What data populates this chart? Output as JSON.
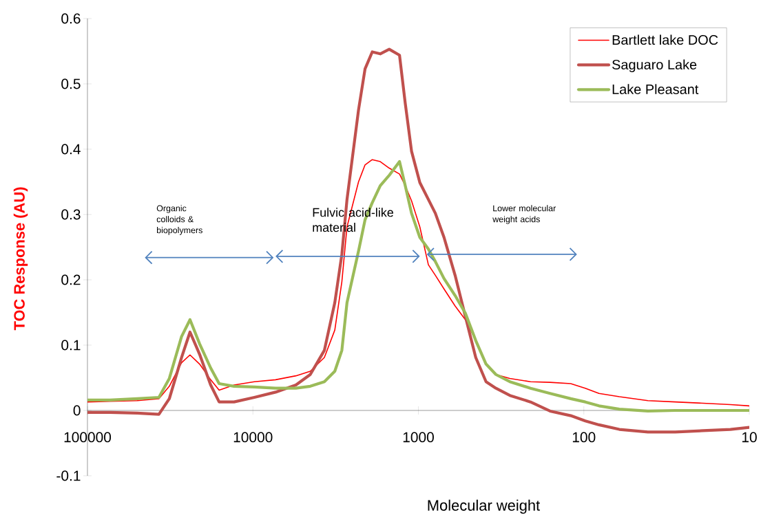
{
  "chart_data": {
    "type": "line",
    "xlabel": "Molecular weight",
    "ylabel": "TOC Response (AU)",
    "log": "x",
    "x": [
      100000,
      73000,
      50000,
      37000,
      32000,
      27000,
      24000,
      21000,
      18000,
      16000,
      13000,
      9800,
      7300,
      5500,
      4500,
      3700,
      3200,
      2900,
      2700,
      2300,
      2100,
      1900,
      1700,
      1500,
      1300,
      1200,
      1100,
      980,
      870,
      790,
      700,
      600,
      520,
      450,
      390,
      340,
      280,
      210,
      160,
      120,
      98,
      81,
      61,
      41,
      28,
      19,
      13,
      10
    ],
    "series": [
      {
        "name": "Bartlett lake DOC",
        "color": "#ff0000",
        "values": [
          0.013,
          0.014,
          0.015,
          0.018,
          0.037,
          0.073,
          0.085,
          0.071,
          0.047,
          0.031,
          0.039,
          0.044,
          0.047,
          0.053,
          0.06,
          0.081,
          0.123,
          0.197,
          0.281,
          0.35,
          0.376,
          0.384,
          0.381,
          0.371,
          0.362,
          0.344,
          0.321,
          0.281,
          0.223,
          0.207,
          0.186,
          0.16,
          0.139,
          0.107,
          0.071,
          0.055,
          0.049,
          0.044,
          0.043,
          0.041,
          0.034,
          0.026,
          0.021,
          0.015,
          0.013,
          0.011,
          0.009,
          0.007
        ]
      },
      {
        "name": "Saguaro Lake",
        "color": "#c0504d",
        "values": [
          -0.003,
          -0.003,
          -0.004,
          -0.006,
          0.018,
          0.081,
          0.12,
          0.086,
          0.039,
          0.013,
          0.013,
          0.02,
          0.028,
          0.039,
          0.055,
          0.092,
          0.165,
          0.239,
          0.323,
          0.46,
          0.523,
          0.549,
          0.546,
          0.553,
          0.544,
          0.47,
          0.397,
          0.349,
          0.323,
          0.302,
          0.265,
          0.207,
          0.144,
          0.081,
          0.044,
          0.034,
          0.023,
          0.013,
          -0.001,
          -0.008,
          -0.016,
          -0.022,
          -0.029,
          -0.033,
          -0.033,
          -0.031,
          -0.029,
          -0.026
        ]
      },
      {
        "name": "Lake Pleasant",
        "color": "#9bbb59",
        "values": [
          0.016,
          0.016,
          0.018,
          0.02,
          0.049,
          0.113,
          0.139,
          0.102,
          0.065,
          0.041,
          0.037,
          0.036,
          0.034,
          0.034,
          0.037,
          0.044,
          0.06,
          0.092,
          0.165,
          0.244,
          0.292,
          0.318,
          0.344,
          0.36,
          0.381,
          0.344,
          0.302,
          0.265,
          0.247,
          0.228,
          0.202,
          0.176,
          0.149,
          0.107,
          0.071,
          0.055,
          0.044,
          0.034,
          0.026,
          0.018,
          0.013,
          0.007,
          0.002,
          -0.001,
          0,
          0,
          0,
          0
        ]
      }
    ],
    "xlim": [
      100000,
      10
    ],
    "xticks": [
      100000,
      10000,
      1000,
      100,
      10
    ],
    "ylim": [
      -0.1,
      0.6
    ],
    "yticks": [
      -0.1,
      0,
      0.1,
      0.2,
      0.3,
      0.4,
      0.5,
      0.6
    ],
    "annotations": [
      "Organic colloids & biopolymers",
      "Fulvic acid-like material",
      "Lower molecular weight acids"
    ],
    "legend": "top right",
    "grid": false
  }
}
